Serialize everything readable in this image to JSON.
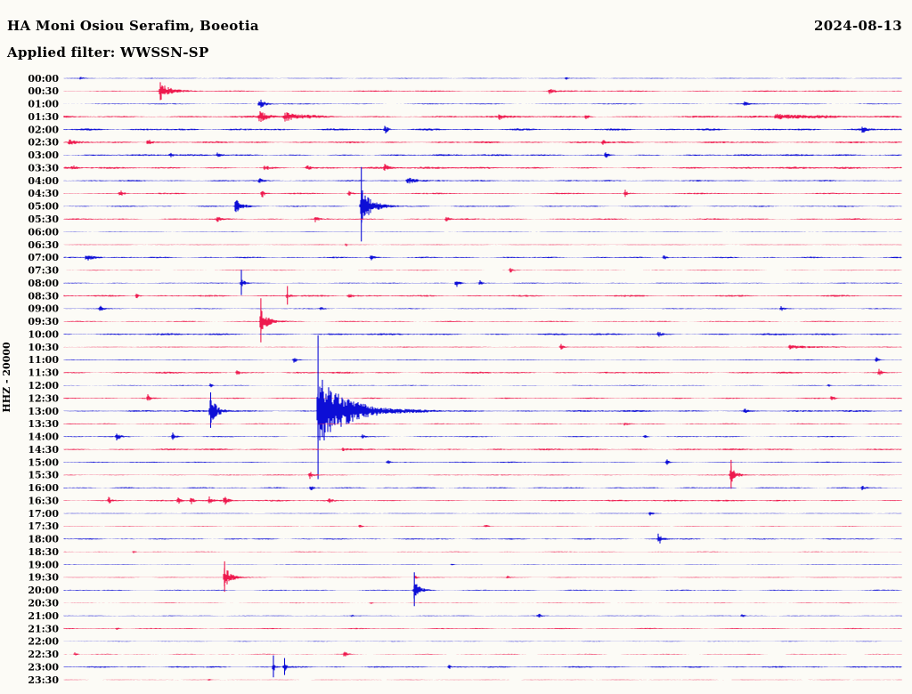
{
  "header": {
    "station_title": "HA Moni Osiou Serafim, Boeotia",
    "date": "2024-08-13",
    "filter_label": "Applied filter: WWSSN-SP"
  },
  "y_axis": {
    "label": "HHZ - 20000"
  },
  "colors": {
    "blue": "#0d0ed6",
    "red": "#ee1a4e",
    "background": "#fcfbf6",
    "text": "#000000"
  },
  "chart_data": {
    "type": "line",
    "subtype": "helicorder-seismogram",
    "title": "HA Moni Osiou Serafim, Boeotia",
    "date": "2024-08-13",
    "filter": "WWSSN-SP",
    "channel_scale": "HHZ - 20000",
    "minutes_per_row": 30,
    "line_color_rule": "hour rows blue, half-hour rows red",
    "significant_events": [
      {
        "time": "00:33",
        "note": "moderate burst"
      },
      {
        "time": "01:07",
        "note": "small burst"
      },
      {
        "time": "01:37",
        "note": "sustained activity"
      },
      {
        "time": "05:06",
        "note": "small burst"
      },
      {
        "time": "05:11",
        "note": "large clipped event"
      },
      {
        "time": "08:06",
        "note": "spike"
      },
      {
        "time": "09:37",
        "note": "large burst"
      },
      {
        "time": "13:05",
        "note": "large burst"
      },
      {
        "time": "13:09",
        "note": "largest event, long coda"
      },
      {
        "time": "15:54",
        "note": "moderate burst"
      },
      {
        "time": "19:36",
        "note": "moderate burst"
      },
      {
        "time": "20:13",
        "note": "moderate burst"
      },
      {
        "time": "23:08",
        "note": "twin spikes"
      }
    ],
    "rows": [
      {
        "label": "00:00",
        "color": "blue",
        "noise": 0.5,
        "events": [
          {
            "m": 0.6,
            "a": 1.5,
            "d": 3
          },
          {
            "m": 18.0,
            "a": 1.5,
            "d": 2
          }
        ]
      },
      {
        "label": "00:30",
        "color": "red",
        "noise": 0.9,
        "events": [
          {
            "m": 3.45,
            "a": 10,
            "d": 9
          },
          {
            "m": 17.4,
            "a": 4,
            "d": 4
          }
        ]
      },
      {
        "label": "01:00",
        "color": "blue",
        "noise": 0.6,
        "events": [
          {
            "m": 7.0,
            "a": 6,
            "d": 6
          },
          {
            "m": 24.4,
            "a": 3,
            "d": 3
          }
        ]
      },
      {
        "label": "01:30",
        "color": "red",
        "noise": 1.3,
        "events": [
          {
            "m": 7.0,
            "a": 6,
            "d": 8
          },
          {
            "m": 7.9,
            "a": 5,
            "d": 18
          },
          {
            "m": 15.6,
            "a": 3,
            "d": 3
          },
          {
            "m": 18.7,
            "a": 3,
            "d": 3
          },
          {
            "m": 25.5,
            "a": 2.5,
            "d": 60
          }
        ]
      },
      {
        "label": "02:00",
        "color": "blue",
        "noise": 1.3,
        "events": [
          {
            "m": 11.5,
            "a": 5,
            "d": 3
          },
          {
            "m": 28.6,
            "a": 4,
            "d": 4
          }
        ]
      },
      {
        "label": "02:30",
        "color": "red",
        "noise": 1.2,
        "events": [
          {
            "m": 0.2,
            "a": 4,
            "d": 4
          },
          {
            "m": 3.0,
            "a": 5,
            "d": 4
          },
          {
            "m": 19.3,
            "a": 3,
            "d": 3
          }
        ]
      },
      {
        "label": "03:00",
        "color": "blue",
        "noise": 1.1,
        "events": [
          {
            "m": 3.8,
            "a": 2.5,
            "d": 3
          },
          {
            "m": 5.5,
            "a": 3,
            "d": 3
          },
          {
            "m": 19.4,
            "a": 3.5,
            "d": 4
          }
        ]
      },
      {
        "label": "03:30",
        "color": "red",
        "noise": 1.3,
        "events": [
          {
            "m": 0.3,
            "a": 3,
            "d": 3
          },
          {
            "m": 7.2,
            "a": 3,
            "d": 4
          },
          {
            "m": 8.7,
            "a": 4,
            "d": 3
          },
          {
            "m": 11.5,
            "a": 4,
            "d": 4
          }
        ]
      },
      {
        "label": "04:00",
        "color": "blue",
        "noise": 0.9,
        "events": [
          {
            "m": 7.0,
            "a": 3,
            "d": 3
          },
          {
            "m": 12.3,
            "a": 4,
            "d": 12
          }
        ]
      },
      {
        "label": "04:30",
        "color": "red",
        "noise": 0.9,
        "events": [
          {
            "m": 2.0,
            "a": 5,
            "d": 3
          },
          {
            "m": 7.1,
            "a": 5,
            "d": 3
          },
          {
            "m": 10.2,
            "a": 3,
            "d": 3
          },
          {
            "m": 20.1,
            "a": 4,
            "d": 3
          }
        ]
      },
      {
        "label": "05:00",
        "color": "blue",
        "noise": 0.8,
        "events": [
          {
            "m": 6.15,
            "a": 8,
            "d": 7
          },
          {
            "m": 10.65,
            "a": 20,
            "d": 11,
            "s": 44
          }
        ]
      },
      {
        "label": "05:30",
        "color": "red",
        "noise": 0.9,
        "events": [
          {
            "m": 5.5,
            "a": 3,
            "d": 3
          },
          {
            "m": 9.0,
            "a": 3,
            "d": 3
          },
          {
            "m": 13.7,
            "a": 3,
            "d": 3
          }
        ]
      },
      {
        "label": "06:00",
        "color": "blue",
        "noise": 0.35,
        "events": []
      },
      {
        "label": "06:30",
        "color": "red",
        "noise": 0.45,
        "events": [
          {
            "m": 10.1,
            "a": 2,
            "d": 2
          }
        ]
      },
      {
        "label": "07:00",
        "color": "blue",
        "noise": 0.9,
        "events": [
          {
            "m": 0.8,
            "a": 4,
            "d": 9
          },
          {
            "m": 11.0,
            "a": 3,
            "d": 3
          },
          {
            "m": 21.5,
            "a": 3,
            "d": 3
          }
        ]
      },
      {
        "label": "07:30",
        "color": "red",
        "noise": 0.45,
        "events": [
          {
            "m": 16.0,
            "a": 3,
            "d": 2.5
          }
        ]
      },
      {
        "label": "08:00",
        "color": "blue",
        "noise": 0.6,
        "events": [
          {
            "m": 6.35,
            "a": 8,
            "d": 3,
            "s": 15
          },
          {
            "m": 14.05,
            "a": 6,
            "d": 3
          },
          {
            "m": 14.9,
            "a": 4,
            "d": 2
          }
        ]
      },
      {
        "label": "08:30",
        "color": "red",
        "noise": 1.1,
        "events": [
          {
            "m": 2.6,
            "a": 3,
            "d": 3
          },
          {
            "m": 8.0,
            "a": 3,
            "d": 3,
            "s": 11
          },
          {
            "m": 10.2,
            "a": 3,
            "d": 6
          }
        ]
      },
      {
        "label": "09:00",
        "color": "blue",
        "noise": 0.6,
        "events": [
          {
            "m": 1.3,
            "a": 3,
            "d": 3
          },
          {
            "m": 9.2,
            "a": 2,
            "d": 3
          },
          {
            "m": 25.7,
            "a": 3,
            "d": 3
          }
        ]
      },
      {
        "label": "09:30",
        "color": "red",
        "noise": 0.7,
        "events": [
          {
            "m": 7.05,
            "a": 15,
            "d": 7,
            "s": 26
          }
        ]
      },
      {
        "label": "10:00",
        "color": "blue",
        "noise": 1.2,
        "events": [
          {
            "m": 21.3,
            "a": 3,
            "d": 3
          }
        ]
      },
      {
        "label": "10:30",
        "color": "red",
        "noise": 0.6,
        "events": [
          {
            "m": 17.8,
            "a": 4,
            "d": 3
          },
          {
            "m": 26.0,
            "a": 2.5,
            "d": 20
          }
        ]
      },
      {
        "label": "11:00",
        "color": "blue",
        "noise": 0.55,
        "events": [
          {
            "m": 8.25,
            "a": 4,
            "d": 2.5
          },
          {
            "m": 29.1,
            "a": 3,
            "d": 2.5
          }
        ]
      },
      {
        "label": "11:30",
        "color": "red",
        "noise": 1.1,
        "events": [
          {
            "m": 6.2,
            "a": 3,
            "d": 4
          },
          {
            "m": 29.2,
            "a": 5,
            "d": 3
          }
        ]
      },
      {
        "label": "12:00",
        "color": "blue",
        "noise": 0.5,
        "events": [
          {
            "m": 5.25,
            "a": 3,
            "d": 1.5
          },
          {
            "m": 27.4,
            "a": 2,
            "d": 2
          }
        ]
      },
      {
        "label": "12:30",
        "color": "red",
        "noise": 0.8,
        "events": [
          {
            "m": 3.0,
            "a": 4,
            "d": 2.5
          },
          {
            "m": 27.5,
            "a": 4,
            "d": 3
          }
        ]
      },
      {
        "label": "13:00",
        "color": "blue",
        "noise": 1.1,
        "events": [
          {
            "m": 5.25,
            "a": 16,
            "d": 7,
            "s": 21
          },
          {
            "m": 9.1,
            "a": 42,
            "d": 30,
            "s": 85
          },
          {
            "m": 24.4,
            "a": 3,
            "d": 3
          }
        ]
      },
      {
        "label": "13:30",
        "color": "red",
        "noise": 0.7,
        "events": [
          {
            "m": 20.1,
            "a": 2,
            "d": 2.5
          }
        ]
      },
      {
        "label": "14:00",
        "color": "blue",
        "noise": 0.7,
        "events": [
          {
            "m": 1.9,
            "a": 5,
            "d": 3
          },
          {
            "m": 3.9,
            "a": 5,
            "d": 3
          },
          {
            "m": 10.7,
            "a": 3,
            "d": 2.5
          },
          {
            "m": 20.8,
            "a": 3,
            "d": 2.5
          }
        ]
      },
      {
        "label": "14:30",
        "color": "red",
        "noise": 1.1,
        "events": [
          {
            "m": 10.0,
            "a": 2,
            "d": 3
          }
        ]
      },
      {
        "label": "15:00",
        "color": "blue",
        "noise": 0.7,
        "events": [
          {
            "m": 11.6,
            "a": 3,
            "d": 2.5
          },
          {
            "m": 21.6,
            "a": 3,
            "d": 2.5
          }
        ]
      },
      {
        "label": "15:30",
        "color": "red",
        "noise": 0.6,
        "events": [
          {
            "m": 8.8,
            "a": 5,
            "d": 4
          },
          {
            "m": 23.9,
            "a": 12,
            "d": 5,
            "s": 17
          }
        ]
      },
      {
        "label": "16:00",
        "color": "blue",
        "noise": 0.8,
        "events": [
          {
            "m": 8.85,
            "a": 3,
            "d": 2.5
          },
          {
            "m": 28.6,
            "a": 3,
            "d": 3
          }
        ]
      },
      {
        "label": "16:30",
        "color": "red",
        "noise": 1.0,
        "events": [
          {
            "m": 1.6,
            "a": 4,
            "d": 2.5
          },
          {
            "m": 4.1,
            "a": 5,
            "d": 2.5
          },
          {
            "m": 4.55,
            "a": 5,
            "d": 2.5
          },
          {
            "m": 5.2,
            "a": 4,
            "d": 2.5
          },
          {
            "m": 5.75,
            "a": 5,
            "d": 3
          },
          {
            "m": 9.5,
            "a": 3,
            "d": 2.5
          }
        ]
      },
      {
        "label": "17:00",
        "color": "blue",
        "noise": 0.45,
        "events": [
          {
            "m": 21.0,
            "a": 3,
            "d": 2.5
          }
        ]
      },
      {
        "label": "17:30",
        "color": "red",
        "noise": 0.4,
        "events": [
          {
            "m": 10.6,
            "a": 2,
            "d": 2
          },
          {
            "m": 15.1,
            "a": 2,
            "d": 2
          }
        ]
      },
      {
        "label": "18:00",
        "color": "blue",
        "noise": 0.8,
        "events": [
          {
            "m": 21.3,
            "a": 7,
            "d": 4
          }
        ]
      },
      {
        "label": "18:30",
        "color": "red",
        "noise": 0.45,
        "events": [
          {
            "m": 2.5,
            "a": 2,
            "d": 2
          }
        ]
      },
      {
        "label": "19:00",
        "color": "blue",
        "noise": 0.35,
        "events": [
          {
            "m": 13.9,
            "a": 1.5,
            "d": 2
          }
        ]
      },
      {
        "label": "19:30",
        "color": "red",
        "noise": 0.5,
        "events": [
          {
            "m": 5.75,
            "a": 13,
            "d": 7,
            "s": 18
          },
          {
            "m": 12.6,
            "a": 3,
            "d": 2
          },
          {
            "m": 15.9,
            "a": 2.5,
            "d": 1.5
          }
        ]
      },
      {
        "label": "20:00",
        "color": "blue",
        "noise": 0.65,
        "events": [
          {
            "m": 12.55,
            "a": 10,
            "d": 6,
            "s": 20
          }
        ]
      },
      {
        "label": "20:30",
        "color": "red",
        "noise": 0.4,
        "events": [
          {
            "m": 11.0,
            "a": 1.5,
            "d": 1.5
          }
        ]
      },
      {
        "label": "21:00",
        "color": "blue",
        "noise": 0.5,
        "events": [
          {
            "m": 10.3,
            "a": 1.5,
            "d": 1.5
          },
          {
            "m": 17.0,
            "a": 3,
            "d": 2.5
          },
          {
            "m": 24.3,
            "a": 2.5,
            "d": 2
          }
        ]
      },
      {
        "label": "21:30",
        "color": "red",
        "noise": 0.7,
        "events": [
          {
            "m": 1.9,
            "a": 2,
            "d": 2
          }
        ]
      },
      {
        "label": "22:00",
        "color": "blue",
        "noise": 0.4,
        "events": []
      },
      {
        "label": "22:30",
        "color": "red",
        "noise": 0.45,
        "events": [
          {
            "m": 0.4,
            "a": 2.5,
            "d": 2
          },
          {
            "m": 10.05,
            "a": 4,
            "d": 2.5
          }
        ]
      },
      {
        "label": "23:00",
        "color": "blue",
        "noise": 0.95,
        "events": [
          {
            "m": 7.5,
            "a": 6,
            "d": 2,
            "s": 13
          },
          {
            "m": 7.9,
            "a": 5,
            "d": 2,
            "s": 10
          },
          {
            "m": 13.8,
            "a": 2.5,
            "d": 2
          }
        ]
      },
      {
        "label": "23:30",
        "color": "red",
        "noise": 0.28,
        "events": [
          {
            "m": 5.2,
            "a": 1.2,
            "d": 1.5
          }
        ]
      }
    ]
  }
}
